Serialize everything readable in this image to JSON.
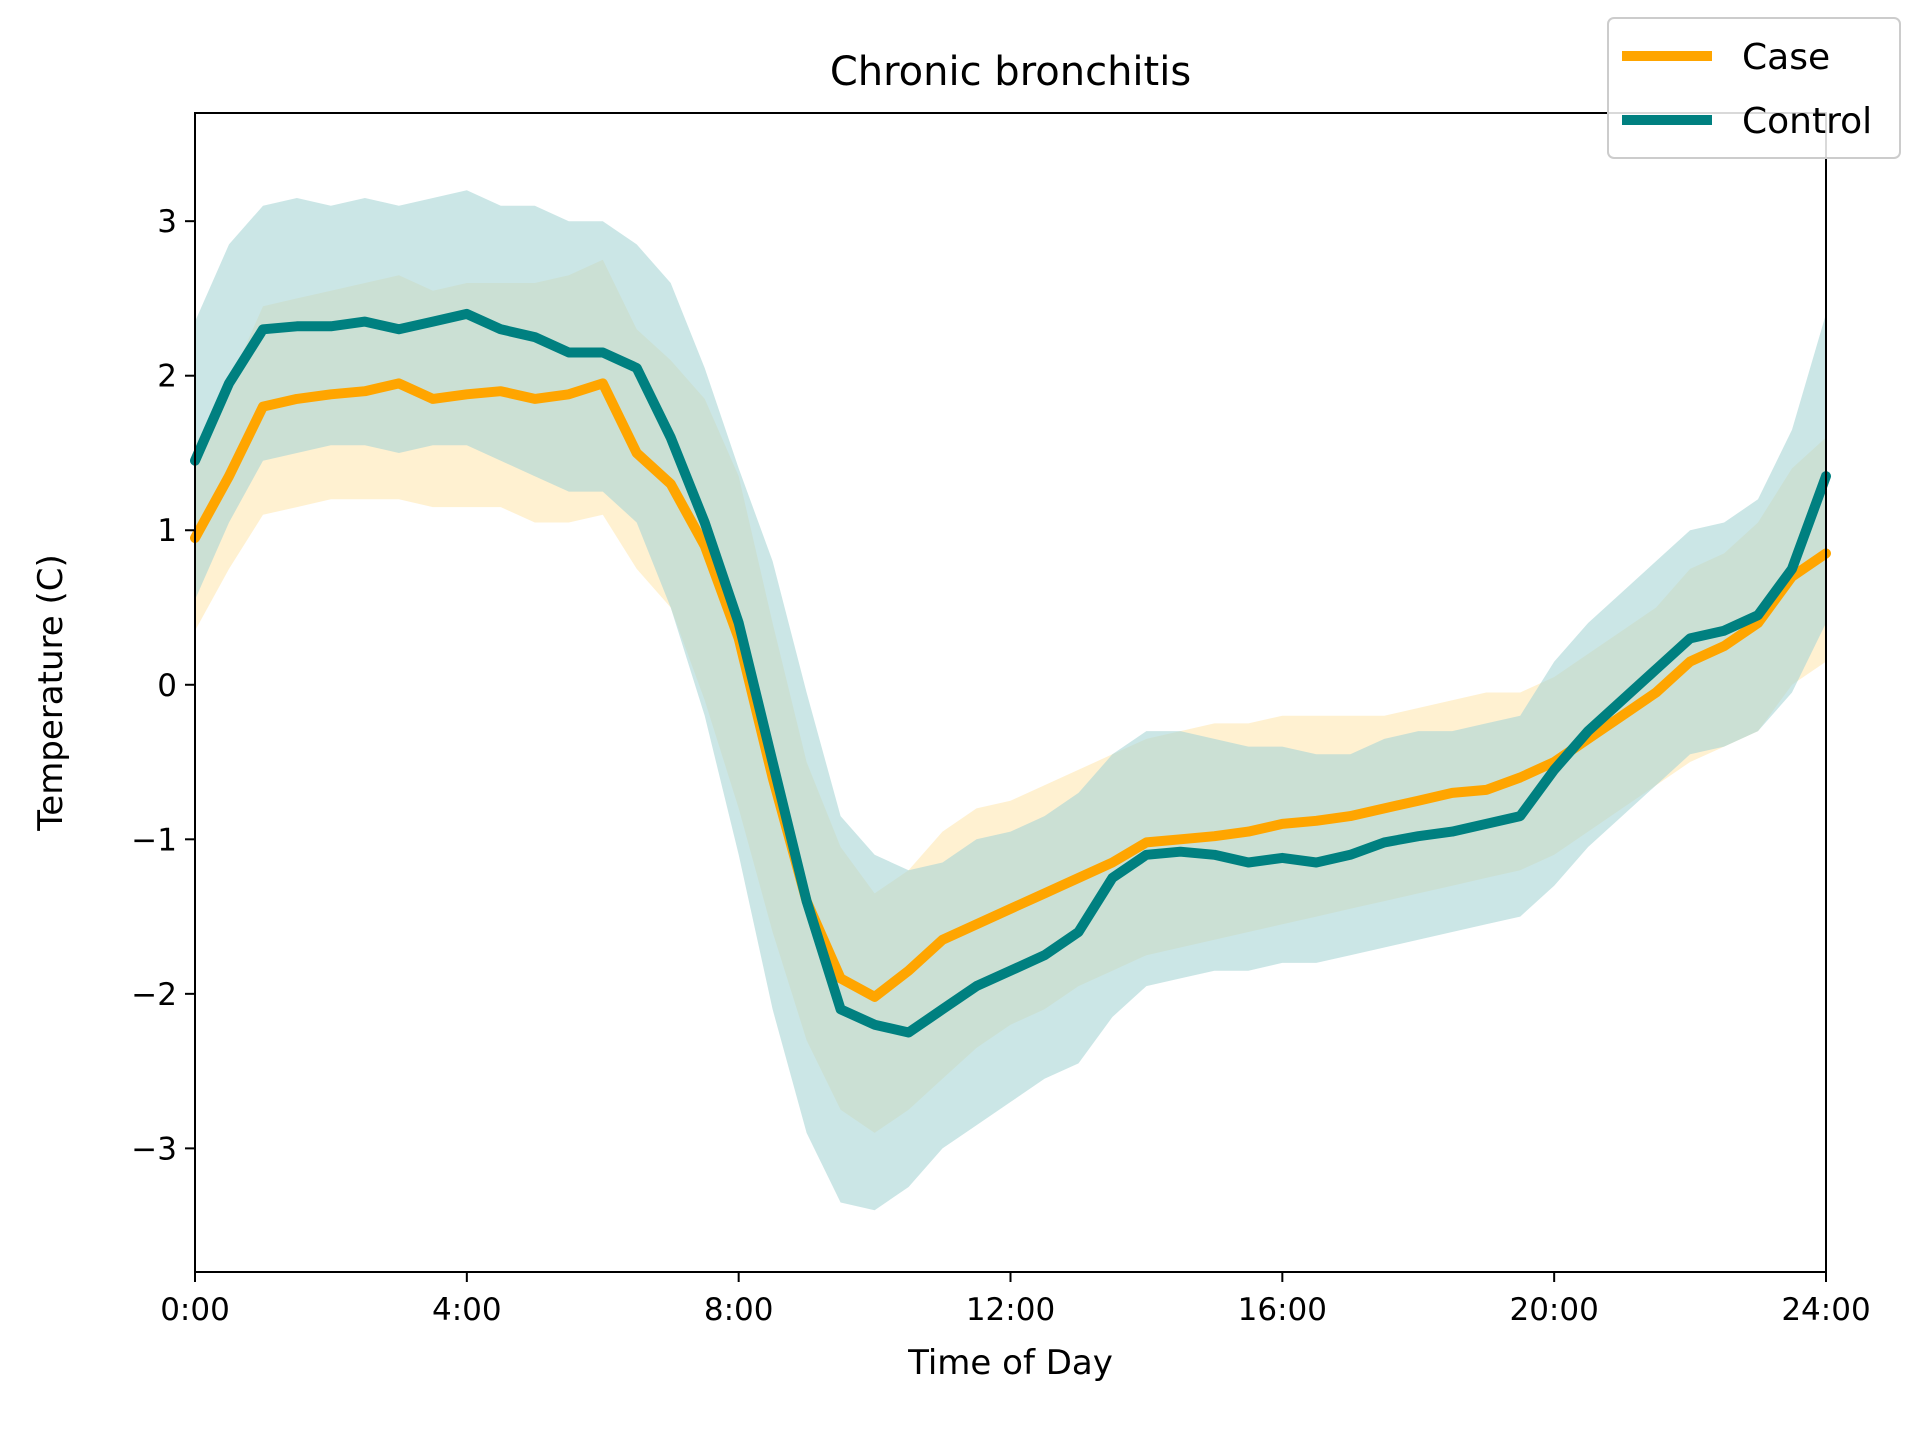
{
  "chart_data": {
    "type": "line",
    "title": "Chronic bronchitis",
    "xlabel": "Time of Day",
    "ylabel": "Temperature (C)",
    "xlim": [
      0,
      24
    ],
    "ylim": [
      -3.8,
      3.7
    ],
    "x_ticks": [
      {
        "value": 0,
        "label": "0:00"
      },
      {
        "value": 4,
        "label": "4:00"
      },
      {
        "value": 8,
        "label": "8:00"
      },
      {
        "value": 12,
        "label": "12:00"
      },
      {
        "value": 16,
        "label": "16:00"
      },
      {
        "value": 20,
        "label": "20:00"
      },
      {
        "value": 24,
        "label": "24:00"
      }
    ],
    "y_ticks": [
      {
        "value": 3,
        "label": "3"
      },
      {
        "value": 2,
        "label": "2"
      },
      {
        "value": 1,
        "label": "1"
      },
      {
        "value": 0,
        "label": "0"
      },
      {
        "value": -1,
        "label": "−1"
      },
      {
        "value": -2,
        "label": "−2"
      },
      {
        "value": -3,
        "label": "−3"
      }
    ],
    "grid": false,
    "legend_position": "top-right",
    "x": [
      0,
      0.5,
      1,
      1.5,
      2,
      2.5,
      3,
      3.5,
      4,
      4.5,
      5,
      5.5,
      6,
      6.5,
      7,
      7.5,
      8,
      8.5,
      9,
      9.5,
      10,
      10.5,
      11,
      11.5,
      12,
      12.5,
      13,
      13.5,
      14,
      14.5,
      15,
      15.5,
      16,
      16.5,
      17,
      17.5,
      18,
      18.5,
      19,
      19.5,
      20,
      20.5,
      21,
      21.5,
      22,
      22.5,
      23,
      23.5,
      24
    ],
    "series": [
      {
        "name": "Case",
        "color": "#FFA500",
        "band_color": "#FFE7B3",
        "values": [
          0.95,
          1.35,
          1.8,
          1.85,
          1.88,
          1.9,
          1.95,
          1.85,
          1.88,
          1.9,
          1.85,
          1.88,
          1.95,
          1.5,
          1.3,
          0.9,
          0.3,
          -0.6,
          -1.4,
          -1.9,
          -2.02,
          -1.85,
          -1.65,
          -1.55,
          -1.45,
          -1.35,
          -1.25,
          -1.15,
          -1.02,
          -1.0,
          -0.98,
          -0.95,
          -0.9,
          -0.88,
          -0.85,
          -0.8,
          -0.75,
          -0.7,
          -0.68,
          -0.6,
          -0.5,
          -0.35,
          -0.2,
          -0.05,
          0.15,
          0.25,
          0.4,
          0.7,
          0.85
        ],
        "lower": [
          0.35,
          0.75,
          1.1,
          1.15,
          1.2,
          1.2,
          1.2,
          1.15,
          1.15,
          1.15,
          1.05,
          1.05,
          1.1,
          0.75,
          0.5,
          -0.1,
          -0.8,
          -1.6,
          -2.3,
          -2.75,
          -2.9,
          -2.75,
          -2.55,
          -2.35,
          -2.2,
          -2.1,
          -1.95,
          -1.85,
          -1.75,
          -1.7,
          -1.65,
          -1.6,
          -1.55,
          -1.5,
          -1.45,
          -1.4,
          -1.35,
          -1.3,
          -1.25,
          -1.2,
          -1.1,
          -0.95,
          -0.8,
          -0.65,
          -0.5,
          -0.4,
          -0.3,
          0.0,
          0.15
        ],
        "upper": [
          1.55,
          1.95,
          2.45,
          2.5,
          2.55,
          2.6,
          2.65,
          2.55,
          2.6,
          2.6,
          2.6,
          2.65,
          2.75,
          2.3,
          2.1,
          1.85,
          1.35,
          0.4,
          -0.5,
          -1.05,
          -1.35,
          -1.2,
          -0.95,
          -0.8,
          -0.75,
          -0.65,
          -0.55,
          -0.45,
          -0.35,
          -0.3,
          -0.25,
          -0.25,
          -0.2,
          -0.2,
          -0.2,
          -0.2,
          -0.15,
          -0.1,
          -0.05,
          -0.05,
          0.05,
          0.2,
          0.35,
          0.5,
          0.75,
          0.85,
          1.05,
          1.4,
          1.6
        ]
      },
      {
        "name": "Control",
        "color": "#008080",
        "band_color": "#A9D6D6",
        "values": [
          1.45,
          1.95,
          2.3,
          2.32,
          2.32,
          2.35,
          2.3,
          2.35,
          2.4,
          2.3,
          2.25,
          2.15,
          2.15,
          2.05,
          1.6,
          1.05,
          0.4,
          -0.5,
          -1.4,
          -2.1,
          -2.2,
          -2.25,
          -2.1,
          -1.95,
          -1.85,
          -1.75,
          -1.6,
          -1.25,
          -1.1,
          -1.08,
          -1.1,
          -1.15,
          -1.12,
          -1.15,
          -1.1,
          -1.02,
          -0.98,
          -0.95,
          -0.9,
          -0.85,
          -0.55,
          -0.3,
          -0.1,
          0.1,
          0.3,
          0.35,
          0.45,
          0.75,
          1.35
        ],
        "lower": [
          0.55,
          1.05,
          1.45,
          1.5,
          1.55,
          1.55,
          1.5,
          1.55,
          1.55,
          1.45,
          1.35,
          1.25,
          1.25,
          1.05,
          0.5,
          -0.2,
          -1.1,
          -2.1,
          -2.9,
          -3.35,
          -3.4,
          -3.25,
          -3.0,
          -2.85,
          -2.7,
          -2.55,
          -2.45,
          -2.15,
          -1.95,
          -1.9,
          -1.85,
          -1.85,
          -1.8,
          -1.8,
          -1.75,
          -1.7,
          -1.65,
          -1.6,
          -1.55,
          -1.5,
          -1.3,
          -1.05,
          -0.85,
          -0.65,
          -0.45,
          -0.4,
          -0.3,
          -0.05,
          0.4
        ],
        "upper": [
          2.35,
          2.85,
          3.1,
          3.15,
          3.1,
          3.15,
          3.1,
          3.15,
          3.2,
          3.1,
          3.1,
          3.0,
          3.0,
          2.85,
          2.6,
          2.05,
          1.4,
          0.8,
          -0.05,
          -0.85,
          -1.1,
          -1.2,
          -1.15,
          -1.0,
          -0.95,
          -0.85,
          -0.7,
          -0.45,
          -0.3,
          -0.3,
          -0.35,
          -0.4,
          -0.4,
          -0.45,
          -0.45,
          -0.35,
          -0.3,
          -0.3,
          -0.25,
          -0.2,
          0.15,
          0.4,
          0.6,
          0.8,
          1.0,
          1.05,
          1.2,
          1.65,
          2.4
        ]
      }
    ]
  }
}
